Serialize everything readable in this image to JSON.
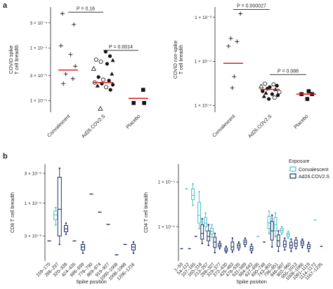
{
  "colors": {
    "median": "#e41a1c",
    "convalescent": "#45c1c9",
    "ad26": "#1c2e6b",
    "ink": "#222222"
  },
  "chart_data": [
    {
      "id": "a-left",
      "panel": "a",
      "type": "scatter",
      "ylabel": "COVID spike\nT cell breadth",
      "yscale": "log",
      "ylim": [
        6e-06,
        0.0006
      ],
      "yticks": [
        1e-05,
        3e-05,
        0.0001,
        0.0003
      ],
      "ytick_labels": [
        "1 × 10⁻⁵",
        "3 × 10⁻⁵",
        "1 × 10⁻⁴",
        "3 × 10⁻⁴"
      ],
      "categories": [
        "Convalescent",
        "Ad26.COV2.S",
        "Placebo"
      ],
      "medians": [
        3.8e-05,
        2.2e-05,
        1.1e-05
      ],
      "comparisons": [
        {
          "from": 0,
          "to": 1,
          "label": "P = 0.16",
          "y": 0.00048
        },
        {
          "from": 1,
          "to": 2,
          "label": "P = 0.0014",
          "y": 9e-05
        }
      ],
      "points": [
        {
          "cat": 0,
          "dx": -0.12,
          "y": 0.00045,
          "shape": "plus"
        },
        {
          "cat": 0,
          "dx": 0.12,
          "y": 0.00028,
          "shape": "plus"
        },
        {
          "cat": 0,
          "dx": -0.15,
          "y": 0.00011,
          "shape": "plus"
        },
        {
          "cat": 0,
          "dx": 0.05,
          "y": 7.5e-05,
          "shape": "plus"
        },
        {
          "cat": 0,
          "dx": 0.15,
          "y": 4.5e-05,
          "shape": "plus"
        },
        {
          "cat": 0,
          "dx": -0.05,
          "y": 3.2e-05,
          "shape": "plus"
        },
        {
          "cat": 0,
          "dx": 0.1,
          "y": 2.6e-05,
          "shape": "plus"
        },
        {
          "cat": 0,
          "dx": -0.1,
          "y": 2.1e-05,
          "shape": "plus"
        },
        {
          "cat": 1,
          "dx": 0.05,
          "y": 8.5e-05,
          "shape": "circle-filled"
        },
        {
          "cat": 1,
          "dx": 0.14,
          "y": 7e-05,
          "shape": "circle-filled"
        },
        {
          "cat": 1,
          "dx": 0.2,
          "y": 5.8e-05,
          "shape": "triangle-filled"
        },
        {
          "cat": 1,
          "dx": -0.15,
          "y": 6e-05,
          "shape": "circle-open"
        },
        {
          "cat": 1,
          "dx": -0.05,
          "y": 5.5e-05,
          "shape": "circle-open"
        },
        {
          "cat": 1,
          "dx": 0.08,
          "y": 5e-05,
          "shape": "circle-filled"
        },
        {
          "cat": 1,
          "dx": -0.2,
          "y": 4e-05,
          "shape": "triangle-open"
        },
        {
          "cat": 1,
          "dx": 0.18,
          "y": 3.2e-05,
          "shape": "triangle-filled"
        },
        {
          "cat": 1,
          "dx": -0.1,
          "y": 2.8e-05,
          "shape": "circle-filled"
        },
        {
          "cat": 1,
          "dx": 0.0,
          "y": 2.5e-05,
          "shape": "circle-open"
        },
        {
          "cat": 1,
          "dx": 0.12,
          "y": 2.4e-05,
          "shape": "circle-filled"
        },
        {
          "cat": 1,
          "dx": -0.18,
          "y": 2.2e-05,
          "shape": "circle-open"
        },
        {
          "cat": 1,
          "dx": -0.03,
          "y": 2.1e-05,
          "shape": "circle-filled"
        },
        {
          "cat": 1,
          "dx": 0.2,
          "y": 2e-05,
          "shape": "circle-filled"
        },
        {
          "cat": 1,
          "dx": -0.12,
          "y": 1.9e-05,
          "shape": "triangle-filled"
        },
        {
          "cat": 1,
          "dx": 0.06,
          "y": 1.8e-05,
          "shape": "circle-open"
        },
        {
          "cat": 1,
          "dx": 0.15,
          "y": 1.6e-05,
          "shape": "circle-filled"
        },
        {
          "cat": 1,
          "dx": -0.06,
          "y": 7e-06,
          "shape": "triangle-open"
        },
        {
          "cat": 2,
          "dx": 0.1,
          "y": 1.6e-05,
          "shape": "square"
        },
        {
          "cat": 2,
          "dx": -0.1,
          "y": 9e-06,
          "shape": "square"
        },
        {
          "cat": 2,
          "dx": 0.12,
          "y": 9e-06,
          "shape": "square"
        }
      ]
    },
    {
      "id": "a-right",
      "panel": "a",
      "type": "scatter",
      "ylabel": "COVID non-spike\nT cell breadth",
      "yscale": "log",
      "ylim": [
        7e-06,
        0.0017
      ],
      "yticks": [
        1e-05,
        0.0001,
        0.001
      ],
      "ytick_labels": [
        "1 × 10⁻⁵",
        "1 × 10⁻⁴",
        "1 × 10⁻³"
      ],
      "categories": [
        "Convalescent",
        "Ad26.COV2.S",
        "Placebo"
      ],
      "medians": [
        9e-05,
        2.3e-05,
        1.8e-05
      ],
      "comparisons": [
        {
          "from": 0,
          "to": 1,
          "label": "P = 0.000027",
          "y": 0.0015
        },
        {
          "from": 1,
          "to": 2,
          "label": "P = 0.088",
          "y": 5e-05
        }
      ],
      "points": [
        {
          "cat": 0,
          "dx": 0.15,
          "y": 0.0012,
          "shape": "plus"
        },
        {
          "cat": 0,
          "dx": -0.05,
          "y": 0.00033,
          "shape": "plus"
        },
        {
          "cat": 0,
          "dx": 0.08,
          "y": 0.00028,
          "shape": "plus"
        },
        {
          "cat": 0,
          "dx": -0.1,
          "y": 0.00022,
          "shape": "plus"
        },
        {
          "cat": 0,
          "dx": 0.02,
          "y": 4.5e-05,
          "shape": "plus"
        },
        {
          "cat": 0,
          "dx": -0.02,
          "y": 2.5e-05,
          "shape": "plus"
        },
        {
          "cat": 1,
          "dx": -0.1,
          "y": 3.1e-05,
          "shape": "circle-open"
        },
        {
          "cat": 1,
          "dx": 0.08,
          "y": 3e-05,
          "shape": "circle-open"
        },
        {
          "cat": 1,
          "dx": 0.15,
          "y": 2.8e-05,
          "shape": "circle-filled"
        },
        {
          "cat": 1,
          "dx": -0.18,
          "y": 2.7e-05,
          "shape": "triangle-open"
        },
        {
          "cat": 1,
          "dx": 0.0,
          "y": 2.6e-05,
          "shape": "circle-filled"
        },
        {
          "cat": 1,
          "dx": -0.05,
          "y": 2.4e-05,
          "shape": "circle-filled"
        },
        {
          "cat": 1,
          "dx": 0.12,
          "y": 2.3e-05,
          "shape": "triangle-filled"
        },
        {
          "cat": 1,
          "dx": -0.15,
          "y": 2.1e-05,
          "shape": "circle-filled"
        },
        {
          "cat": 1,
          "dx": 0.2,
          "y": 2e-05,
          "shape": "circle-open"
        },
        {
          "cat": 1,
          "dx": -0.08,
          "y": 1.9e-05,
          "shape": "triangle-filled"
        },
        {
          "cat": 1,
          "dx": 0.05,
          "y": 1.8e-05,
          "shape": "circle-filled"
        },
        {
          "cat": 1,
          "dx": 0.17,
          "y": 1.7e-05,
          "shape": "circle-filled"
        },
        {
          "cat": 1,
          "dx": -0.12,
          "y": 1.6e-05,
          "shape": "triangle-filled"
        },
        {
          "cat": 1,
          "dx": 0.1,
          "y": 1.5e-05,
          "shape": "circle-open"
        },
        {
          "cat": 1,
          "dx": -0.02,
          "y": 1.4e-05,
          "shape": "circle-filled"
        },
        {
          "cat": 2,
          "dx": 0.05,
          "y": 2.1e-05,
          "shape": "square"
        },
        {
          "cat": 2,
          "dx": -0.1,
          "y": 1.8e-05,
          "shape": "square"
        },
        {
          "cat": 2,
          "dx": 0.12,
          "y": 1.8e-05,
          "shape": "square"
        },
        {
          "cat": 2,
          "dx": 0.02,
          "y": 1.4e-05,
          "shape": "square"
        }
      ]
    },
    {
      "id": "b-left",
      "panel": "b",
      "type": "box",
      "xlabel": "Spike position",
      "ylabel": "CD8 T cell breadth",
      "yscale": "log",
      "ylim": [
        1.2e-06,
        4.2e-05
      ],
      "yticks": [
        3e-06,
        1e-05,
        3e-05
      ],
      "ytick_labels": [
        "3 × 10⁻⁶",
        "1 × 10⁻⁵",
        "3 × 10⁻⁵"
      ],
      "categories": [
        "159–170",
        "286–297",
        "320–338",
        "424–435",
        "686–699",
        "778–790",
        "869–874",
        "919–927",
        "1000–1008",
        "1008–1068",
        "1206–1216"
      ],
      "boxes": [
        {
          "cat": 0,
          "group": "ad26",
          "whislo": 2.5e-06,
          "q1": 2.5e-06,
          "med": 2.5e-06,
          "q3": 2.5e-06,
          "whishi": 2.5e-06
        },
        {
          "cat": 1,
          "group": "convalescent",
          "whislo": 4.5e-06,
          "q1": 5.5e-06,
          "med": 6.5e-06,
          "q3": 7.5e-06,
          "whishi": 8.5e-06
        },
        {
          "cat": 1,
          "group": "ad26",
          "whislo": 2.2e-06,
          "q1": 3e-06,
          "med": 8e-06,
          "q3": 2.6e-05,
          "whishi": 3.6e-05
        },
        {
          "cat": 2,
          "group": "ad26",
          "whislo": 3.2e-06,
          "q1": 3.5e-06,
          "med": 3.9e-06,
          "q3": 4.4e-06,
          "whishi": 4.8e-06
        },
        {
          "cat": 3,
          "group": "ad26",
          "whislo": 2.5e-06,
          "q1": 2.5e-06,
          "med": 2.5e-06,
          "q3": 2.5e-06,
          "whishi": 2.5e-06
        },
        {
          "cat": 4,
          "group": "ad26",
          "whislo": 1.6e-06,
          "q1": 1.8e-06,
          "med": 2e-06,
          "q3": 2.2e-06,
          "whishi": 2.4e-06
        },
        {
          "cat": 5,
          "group": "ad26",
          "whislo": 1.4e-05,
          "q1": 1.4e-05,
          "med": 1.4e-05,
          "q3": 1.4e-05,
          "whishi": 1.4e-05
        },
        {
          "cat": 6,
          "group": "ad26",
          "whislo": 7.2e-06,
          "q1": 7.2e-06,
          "med": 7.2e-06,
          "q3": 7.2e-06,
          "whishi": 7.2e-06
        },
        {
          "cat": 7,
          "group": "ad26",
          "whislo": 4.6e-06,
          "q1": 4.6e-06,
          "med": 4.6e-06,
          "q3": 4.6e-06,
          "whishi": 4.6e-06
        },
        {
          "cat": 8,
          "group": "ad26",
          "whislo": 1.5e-06,
          "q1": 1.5e-06,
          "med": 1.5e-06,
          "q3": 1.5e-06,
          "whishi": 1.5e-06
        },
        {
          "cat": 9,
          "group": "ad26",
          "whislo": 2.2e-06,
          "q1": 2.2e-06,
          "med": 2.2e-06,
          "q3": 2.2e-06,
          "whishi": 2.2e-06
        },
        {
          "cat": 10,
          "group": "ad26",
          "whislo": 1.6e-06,
          "q1": 1.8e-06,
          "med": 2e-06,
          "q3": 2.2e-06,
          "whishi": 2.4e-06
        }
      ]
    },
    {
      "id": "b-right",
      "panel": "b",
      "type": "box",
      "xlabel": "Spike position",
      "ylabel": "CD4 T cell breadth",
      "yscale": "log",
      "ylim": [
        1.7e-06,
        0.00025
      ],
      "yticks": [
        1e-05,
        0.0001
      ],
      "ytick_labels": [
        "1 × 10⁻⁵",
        "1 × 10⁻⁴"
      ],
      "legend": {
        "title": "Exposure",
        "entries": [
          "Convalescent",
          "Ad26.COV2.S"
        ],
        "position": "top-right"
      },
      "categories": [
        "1–59",
        "54–112",
        "107–165",
        "160–218",
        "213–267",
        "266–327",
        "319–377",
        "372–430",
        "425–483",
        "478–535",
        "531–589",
        "584–642",
        "637–695",
        "690–748",
        "743–801",
        "796–851",
        "846–907",
        "902–960",
        "955–1013",
        "1008–1066",
        "1061–1119",
        "1114–1172",
        "1167–1225"
      ],
      "boxes": [
        {
          "cat": 0,
          "group": "ad26",
          "whislo": 3.2e-06,
          "q1": 3.2e-06,
          "med": 3.2e-06,
          "q3": 3.2e-06,
          "whishi": 3.2e-06
        },
        {
          "cat": 1,
          "group": "convalescent",
          "whislo": 7e-05,
          "q1": 7e-05,
          "med": 7e-05,
          "q3": 7e-05,
          "whishi": 7e-05
        },
        {
          "cat": 1,
          "group": "ad26",
          "whislo": 3.2e-06,
          "q1": 3.2e-06,
          "med": 3.2e-06,
          "q3": 3.2e-06,
          "whishi": 3.2e-06
        },
        {
          "cat": 2,
          "group": "convalescent",
          "whislo": 3e-05,
          "q1": 4e-05,
          "med": 5e-05,
          "q3": 7e-05,
          "whishi": 9e-05
        },
        {
          "cat": 2,
          "group": "ad26",
          "whislo": 6e-06,
          "q1": 6e-06,
          "med": 6e-06,
          "q3": 6e-06,
          "whishi": 6e-06
        },
        {
          "cat": 3,
          "group": "convalescent",
          "whislo": 9e-06,
          "q1": 1.2e-05,
          "med": 1.8e-05,
          "q3": 3.5e-05,
          "whishi": 6e-05
        },
        {
          "cat": 3,
          "group": "ad26",
          "whislo": 4.2e-06,
          "q1": 5.2e-06,
          "med": 7e-06,
          "q3": 1.1e-05,
          "whishi": 1.5e-05
        },
        {
          "cat": 4,
          "group": "convalescent",
          "whislo": 8e-06,
          "q1": 1e-05,
          "med": 1.2e-05,
          "q3": 1.6e-05,
          "whishi": 2e-05
        },
        {
          "cat": 4,
          "group": "ad26",
          "whislo": 3.8e-06,
          "q1": 4.8e-06,
          "med": 6e-06,
          "q3": 8e-06,
          "whishi": 1.1e-05
        },
        {
          "cat": 5,
          "group": "convalescent",
          "whislo": 5.8e-06,
          "q1": 6.8e-06,
          "med": 7.8e-06,
          "q3": 9.2e-06,
          "whishi": 1.1e-05
        },
        {
          "cat": 5,
          "group": "ad26",
          "whislo": 2.6e-06,
          "q1": 3.4e-06,
          "med": 4.5e-06,
          "q3": 5.8e-06,
          "whishi": 7e-06
        },
        {
          "cat": 6,
          "group": "ad26",
          "whislo": 3.2e-06,
          "q1": 3.5e-06,
          "med": 3.8e-06,
          "q3": 4.2e-06,
          "whishi": 4.6e-06
        },
        {
          "cat": 7,
          "group": "ad26",
          "whislo": 2.6e-06,
          "q1": 2.8e-06,
          "med": 3e-06,
          "q3": 3.3e-06,
          "whishi": 3.6e-06
        },
        {
          "cat": 8,
          "group": "ad26",
          "whislo": 2.7e-06,
          "q1": 3e-06,
          "med": 3.5e-06,
          "q3": 4.5e-06,
          "whishi": 5.5e-06
        },
        {
          "cat": 9,
          "group": "ad26",
          "whislo": 3e-06,
          "q1": 3.3e-06,
          "med": 3.7e-06,
          "q3": 4.1e-06,
          "whishi": 4.5e-06
        },
        {
          "cat": 10,
          "group": "ad26",
          "whislo": 3.6e-06,
          "q1": 4e-06,
          "med": 4.5e-06,
          "q3": 5e-06,
          "whishi": 5.5e-06
        },
        {
          "cat": 11,
          "group": "ad26",
          "whislo": 2.6e-06,
          "q1": 2.9e-06,
          "med": 3.2e-06,
          "q3": 3.6e-06,
          "whishi": 4e-06
        },
        {
          "cat": 12,
          "group": "convalescent",
          "whislo": 6e-06,
          "q1": 6e-06,
          "med": 6e-06,
          "q3": 6e-06,
          "whishi": 6e-06
        },
        {
          "cat": 13,
          "group": "ad26",
          "whislo": 4.5e-06,
          "q1": 4.5e-06,
          "med": 4.5e-06,
          "q3": 4.5e-06,
          "whishi": 4.5e-06
        },
        {
          "cat": 14,
          "group": "convalescent",
          "whislo": 7e-06,
          "q1": 9e-06,
          "med": 1.2e-05,
          "q3": 1.7e-05,
          "whishi": 2.2e-05
        },
        {
          "cat": 14,
          "group": "ad26",
          "whislo": 3.5e-06,
          "q1": 5e-06,
          "med": 8e-06,
          "q3": 1.3e-05,
          "whishi": 1.8e-05
        },
        {
          "cat": 15,
          "group": "convalescent",
          "whislo": 6e-06,
          "q1": 8e-06,
          "med": 1.1e-05,
          "q3": 1.6e-05,
          "whishi": 2e-05
        },
        {
          "cat": 15,
          "group": "ad26",
          "whislo": 2.8e-06,
          "q1": 3.6e-06,
          "med": 4.8e-06,
          "q3": 6.5e-06,
          "whishi": 8e-06
        },
        {
          "cat": 16,
          "group": "convalescent",
          "whislo": 6.8e-06,
          "q1": 7.5e-06,
          "med": 8.2e-06,
          "q3": 9e-06,
          "whishi": 9.8e-06
        },
        {
          "cat": 16,
          "group": "ad26",
          "whislo": 3e-06,
          "q1": 3.5e-06,
          "med": 4e-06,
          "q3": 4.8e-06,
          "whishi": 5.5e-06
        },
        {
          "cat": 17,
          "group": "convalescent",
          "whislo": 5.5e-06,
          "q1": 6e-06,
          "med": 6.6e-06,
          "q3": 7.2e-06,
          "whishi": 7.8e-06
        },
        {
          "cat": 17,
          "group": "ad26",
          "whislo": 2.8e-06,
          "q1": 3.3e-06,
          "med": 3.8e-06,
          "q3": 4.5e-06,
          "whishi": 5.2e-06
        },
        {
          "cat": 18,
          "group": "ad26",
          "whislo": 3.2e-06,
          "q1": 3.6e-06,
          "med": 4.2e-06,
          "q3": 5e-06,
          "whishi": 5.6e-06
        },
        {
          "cat": 19,
          "group": "ad26",
          "whislo": 3.4e-06,
          "q1": 3.8e-06,
          "med": 4.3e-06,
          "q3": 4.8e-06,
          "whishi": 5.2e-06
        },
        {
          "cat": 20,
          "group": "ad26",
          "whislo": 2.8e-06,
          "q1": 3.2e-06,
          "med": 3.6e-06,
          "q3": 4e-06,
          "whishi": 4.4e-06
        },
        {
          "cat": 21,
          "group": "convalescent",
          "whislo": 1.4e-05,
          "q1": 1.4e-05,
          "med": 1.4e-05,
          "q3": 1.4e-05,
          "whishi": 1.4e-05
        },
        {
          "cat": 22,
          "group": "ad26",
          "whislo": 3.6e-06,
          "q1": 3.6e-06,
          "med": 3.6e-06,
          "q3": 3.6e-06,
          "whishi": 3.6e-06
        }
      ]
    }
  ]
}
